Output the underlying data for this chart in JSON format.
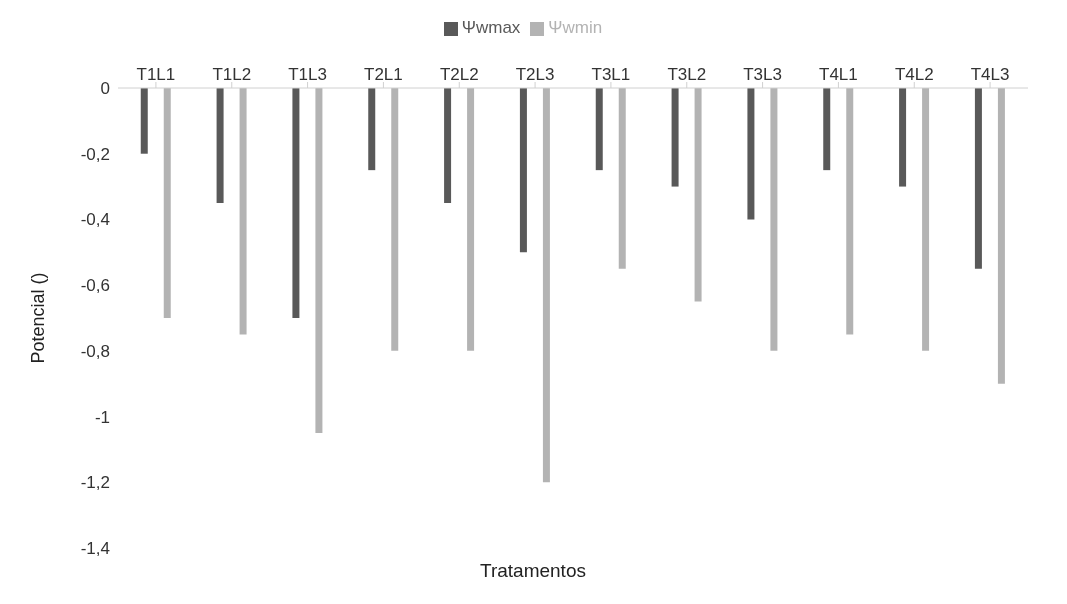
{
  "chart_data": {
    "type": "bar",
    "xlabel": "Tratamentos",
    "ylabel": "Potencial ()",
    "categories": [
      "T1L1",
      "T1L2",
      "T1L3",
      "T2L1",
      "T2L2",
      "T2L3",
      "T3L1",
      "T3L2",
      "T3L3",
      "T4L1",
      "T4L2",
      "T4L3"
    ],
    "series": [
      {
        "name": "Ψwmax",
        "color": "#595959",
        "values": [
          -0.2,
          -0.35,
          -0.7,
          -0.25,
          -0.35,
          -0.5,
          -0.25,
          -0.3,
          -0.4,
          -0.25,
          -0.3,
          -0.55
        ]
      },
      {
        "name": "Ψwmin",
        "color": "#b3b3b3",
        "values": [
          -0.7,
          -0.75,
          -1.05,
          -0.8,
          -0.8,
          -1.2,
          -0.55,
          -0.65,
          -0.8,
          -0.75,
          -0.8,
          -0.9
        ]
      }
    ],
    "ylim": [
      -1.4,
      0
    ],
    "yticks": [
      {
        "value": 0,
        "label": "0"
      },
      {
        "value": -0.2,
        "label": "-0,2"
      },
      {
        "value": -0.4,
        "label": "-0,4"
      },
      {
        "value": -0.6,
        "label": "-0,6"
      },
      {
        "value": -0.8,
        "label": "-0,8"
      },
      {
        "value": -1,
        "label": "-1"
      },
      {
        "value": -1.2,
        "label": "-1,2"
      },
      {
        "value": -1.4,
        "label": "-1,4"
      }
    ],
    "grid": false,
    "legend": "top"
  }
}
